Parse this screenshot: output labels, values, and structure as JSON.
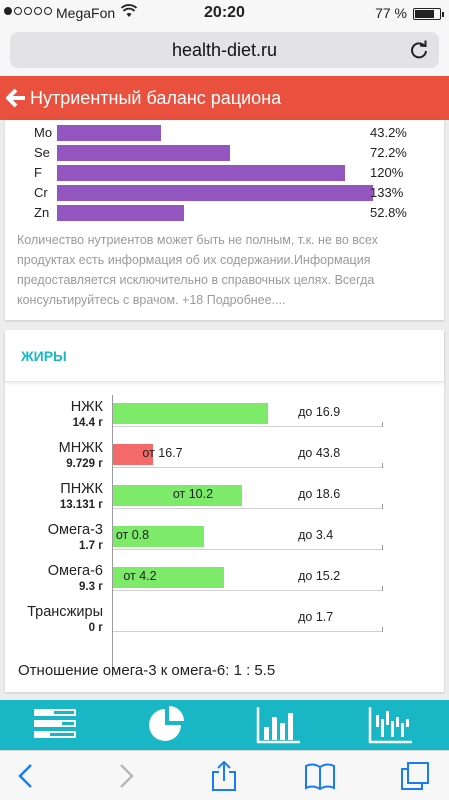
{
  "status_bar": {
    "carrier": "MegaFon",
    "time": "20:20",
    "battery": "77 %",
    "battery_level": 0.77
  },
  "browser": {
    "url": "health-diet.ru"
  },
  "header": {
    "title": "Нутриентный баланс рациона"
  },
  "minerals": [
    {
      "name": "Mo",
      "percent": "43.2%",
      "value": 43.2
    },
    {
      "name": "Se",
      "percent": "72.2%",
      "value": 72.2
    },
    {
      "name": "F",
      "percent": "120%",
      "value": 120
    },
    {
      "name": "Cr",
      "percent": "133%",
      "value": 133
    },
    {
      "name": "Zn",
      "percent": "52.8%",
      "value": 52.8
    }
  ],
  "disclaimer": "Количество нутриентов может быть не полным, т.к. не во всех продуктах есть информация об их содержании.Информация предоставляется исключительно в справочных целях. Всегда консультируйтесь с врачом. +18 Подробнее....",
  "fats": {
    "title": "ЖИРЫ",
    "rows": [
      {
        "name": "НЖК",
        "amount": "14.4 г",
        "value": 14.4,
        "min": "",
        "max": "до 16.9",
        "min_value": null,
        "max_value": 16.9,
        "status": "ok"
      },
      {
        "name": "МНЖК",
        "amount": "9.729 г",
        "value": 9.729,
        "min": "от 16.7",
        "max": "до 43.8",
        "min_value": 16.7,
        "max_value": 43.8,
        "status": "low"
      },
      {
        "name": "ПНЖК",
        "amount": "13.131 г",
        "value": 13.131,
        "min": "от 10.2",
        "max": "до 18.6",
        "min_value": 10.2,
        "max_value": 18.6,
        "status": "ok"
      },
      {
        "name": "Омега-3",
        "amount": "1.7 г",
        "value": 1.7,
        "min": "от 0.8",
        "max": "до 3.4",
        "min_value": 0.8,
        "max_value": 3.4,
        "status": "ok"
      },
      {
        "name": "Омега-6",
        "amount": "9.3 г",
        "value": 9.3,
        "min": "от 4.2",
        "max": "до 15.2",
        "min_value": 4.2,
        "max_value": 15.2,
        "status": "ok"
      },
      {
        "name": "Трансжиры",
        "amount": "0 г",
        "value": 0,
        "min": "",
        "max": "до 1.7",
        "min_value": null,
        "max_value": 1.7,
        "status": "ok"
      }
    ],
    "ratio": "Отношение омега-3 к омега-6: 1 : 5.5"
  },
  "bottom_nav": [
    {
      "icon": "list-bars-icon"
    },
    {
      "icon": "pie-chart-icon"
    },
    {
      "icon": "bar-chart-icon"
    },
    {
      "icon": "stats-chart-icon"
    }
  ],
  "toolbar": [
    {
      "icon": "back-arrow-icon"
    },
    {
      "icon": "forward-arrow-icon"
    },
    {
      "icon": "share-icon"
    },
    {
      "icon": "bookmarks-icon"
    },
    {
      "icon": "tabs-icon"
    }
  ],
  "colors": {
    "header": "#e9503e",
    "accent": "#19b7c5",
    "mineral_bar": "#9355c0",
    "fat_ok": "#7dea6a",
    "fat_low": "#f46a6a"
  }
}
